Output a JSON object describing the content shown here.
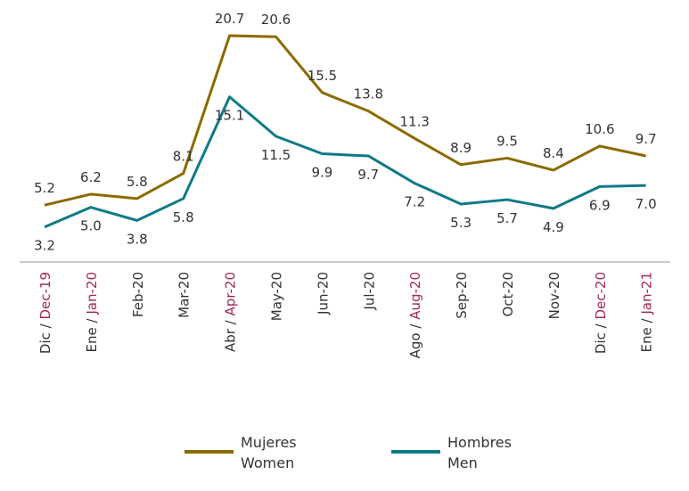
{
  "chart_data": {
    "type": "line",
    "categories": [
      {
        "es": "Dic / ",
        "en": "Dec-19"
      },
      {
        "es": "Ene / ",
        "en": "Jan-20"
      },
      {
        "es": "Feb-20",
        "en": ""
      },
      {
        "es": "Mar-20",
        "en": ""
      },
      {
        "es": "Abr / ",
        "en": "Apr-20"
      },
      {
        "es": "May-20",
        "en": ""
      },
      {
        "es": "Jun-20",
        "en": ""
      },
      {
        "es": "Jul-20",
        "en": ""
      },
      {
        "es": "Ago / ",
        "en": "Aug-20"
      },
      {
        "es": "Sep-20",
        "en": ""
      },
      {
        "es": "Oct-20",
        "en": ""
      },
      {
        "es": "Nov-20",
        "en": ""
      },
      {
        "es": "Dic / ",
        "en": "Dec-20"
      },
      {
        "es": "Ene / ",
        "en": "Jan-21"
      }
    ],
    "series": [
      {
        "name": "Mujeres",
        "name_en": "Women",
        "color": "#8c6a00",
        "values": [
          5.2,
          6.2,
          5.8,
          8.1,
          20.7,
          20.6,
          15.5,
          13.8,
          11.3,
          8.9,
          9.5,
          8.4,
          10.6,
          9.7
        ]
      },
      {
        "name": "Hombres",
        "name_en": "Men",
        "color": "#0f7a87",
        "values": [
          3.2,
          5.0,
          3.8,
          5.8,
          15.1,
          11.5,
          9.9,
          9.7,
          7.2,
          5.3,
          5.7,
          4.9,
          6.9,
          7.0
        ]
      }
    ],
    "ylim": [
      0,
      20.7
    ],
    "grid": false,
    "legend_placement": "bottom",
    "accent_colors": {
      "english_text": "#a3285a",
      "axis": "#bbbbbb"
    }
  }
}
